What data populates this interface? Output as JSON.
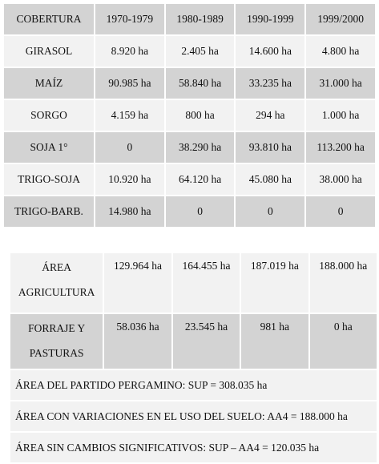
{
  "table1": {
    "headers": [
      "COBERTURA",
      "1970-1979",
      "1980-1989",
      "1990-1999",
      "1999/2000"
    ],
    "rows": [
      [
        "GIRASOL",
        "8.920 ha",
        "2.405 ha",
        "14.600 ha",
        "4.800 ha"
      ],
      [
        "MAÍZ",
        "90.985 ha",
        "58.840 ha",
        "33.235 ha",
        "31.000 ha"
      ],
      [
        "SORGO",
        "4.159 ha",
        "800 ha",
        "294 ha",
        "1.000 ha"
      ],
      [
        "SOJA 1°",
        "0",
        "38.290 ha",
        "93.810 ha",
        "113.200 ha"
      ],
      [
        "TRIGO-SOJA",
        "10.920 ha",
        "64.120 ha",
        "45.080 ha",
        "38.000 ha"
      ],
      [
        "TRIGO-BARB.",
        "14.980 ha",
        "0",
        "0",
        "0"
      ]
    ]
  },
  "table2": {
    "rows": [
      {
        "label": "ÁREA AGRICULTURA",
        "values": [
          "129.964 ha",
          "164.455 ha",
          "187.019 ha",
          "188.000 ha"
        ]
      },
      {
        "label": "FORRAJE Y PASTURAS",
        "values": [
          "58.036 ha",
          "23.545 ha",
          "981 ha",
          "0 ha"
        ]
      }
    ],
    "notes": [
      "ÁREA DEL PARTIDO PERGAMINO: SUP = 308.035 ha",
      "ÁREA CON VARIACIONES EN EL USO DEL SUELO: AA4 = 188.000 ha",
      "ÁREA SIN CAMBIOS SIGNIFICATIVOS: SUP – AA4 = 120.035 ha"
    ]
  }
}
